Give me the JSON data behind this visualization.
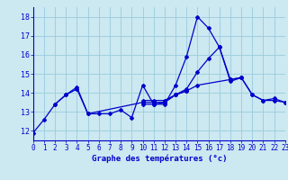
{
  "xlabel": "Graphe des températures (°c)",
  "background_color": "#cce8f0",
  "grid_color": "#99ccdd",
  "line_color": "#0000cc",
  "hours": [
    0,
    1,
    2,
    3,
    4,
    5,
    6,
    7,
    8,
    9,
    10,
    11,
    12,
    13,
    14,
    15,
    16,
    17,
    18,
    19,
    20,
    21,
    22,
    23
  ],
  "line1": [
    11.9,
    12.6,
    13.4,
    13.9,
    14.3,
    12.9,
    12.9,
    12.9,
    13.1,
    12.7,
    14.4,
    13.4,
    13.4,
    14.4,
    15.9,
    18.0,
    17.4,
    16.4,
    14.7,
    14.8,
    13.9,
    13.6,
    13.6,
    13.5
  ],
  "line2": [
    13.4,
    13.9,
    14.2,
    12.9,
    13.5,
    13.5,
    13.5,
    13.9,
    14.1
  ],
  "line2_x": [
    2,
    3,
    4,
    5,
    10,
    11,
    12,
    13,
    14
  ],
  "line3": [
    13.6,
    13.6,
    13.6,
    13.9,
    14.2,
    15.1,
    15.8,
    16.4,
    14.6,
    14.8,
    13.9,
    13.6,
    13.7,
    13.5
  ],
  "line3_x": [
    10,
    11,
    12,
    13,
    14,
    15,
    16,
    17,
    18,
    19,
    20,
    21,
    22,
    23
  ],
  "line4": [
    13.4,
    13.4,
    13.5,
    13.9,
    14.1,
    14.4,
    14.7,
    14.8
  ],
  "line4_x": [
    10,
    11,
    12,
    13,
    14,
    15,
    18,
    19
  ],
  "ylim": [
    11.5,
    18.5
  ],
  "yticks": [
    12,
    13,
    14,
    15,
    16,
    17,
    18
  ],
  "xlim": [
    0,
    23
  ]
}
